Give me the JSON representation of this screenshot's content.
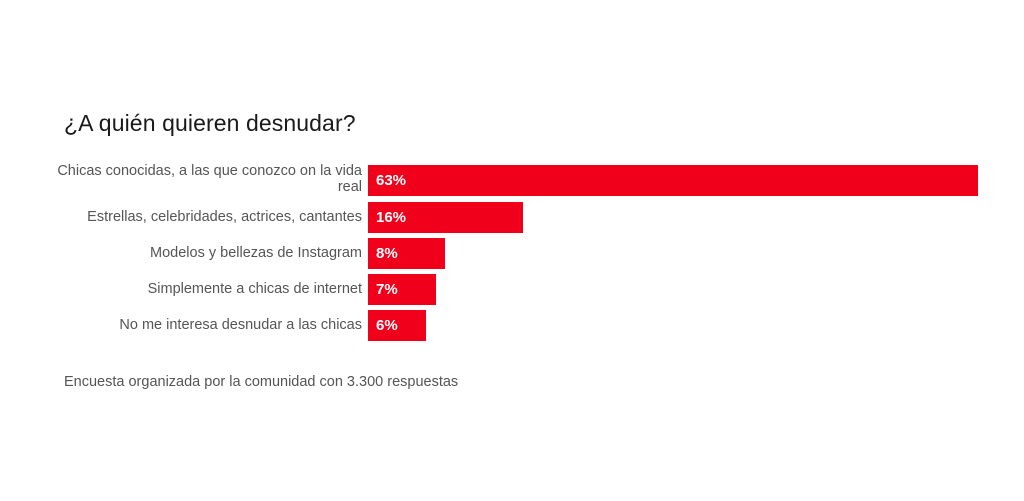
{
  "chart_data": {
    "type": "bar",
    "orientation": "horizontal",
    "title": "¿A quién quieren desnudar?",
    "categories": [
      "Chicas conocidas, a las que conozco on la vida real",
      "Estrellas, celebridades, actrices, cantantes",
      "Modelos y bellezas de Instagram",
      "Simplemente a chicas de internet",
      "No me interesa desnudar a las chicas"
    ],
    "values": [
      63,
      16,
      8,
      7,
      6
    ],
    "value_labels": [
      "63%",
      "16%",
      "8%",
      "7%",
      "6%"
    ],
    "xlim": [
      0,
      63
    ],
    "xlabel": "",
    "ylabel": "",
    "grid": false,
    "bar_color": "#f0001b"
  },
  "footnote": "Encuesta organizada por la comunidad con 3.300 respuestas"
}
